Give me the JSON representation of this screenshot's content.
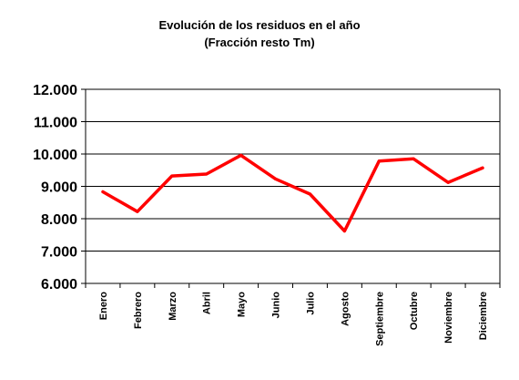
{
  "chart_data": {
    "type": "line",
    "title": "Evolución de los residuos en el año",
    "subtitle": "(Fracción resto Tm)",
    "xlabel": "",
    "ylabel": "",
    "categories": [
      "Enero",
      "Febrero",
      "Marzo",
      "Abril",
      "Mayo",
      "Junio",
      "Julio",
      "Agosto",
      "Septiembre",
      "Octubre",
      "Noviembre",
      "Diciembre"
    ],
    "series": [
      {
        "values": [
          8830,
          8220,
          9320,
          9380,
          9960,
          9230,
          8760,
          7620,
          9780,
          9850,
          9120,
          9570
        ]
      }
    ],
    "ylim": [
      6000,
      12000
    ],
    "yticks": [
      12000,
      11000,
      10000,
      9000,
      8000,
      7000,
      6000
    ],
    "ytick_labels": [
      "12.000",
      "11.000",
      "10.000",
      "9.000",
      "8.000",
      "7.000",
      "6.000"
    ],
    "grid": true,
    "legend": "none",
    "colors": {
      "line": "#ff0000",
      "grid": "#000000",
      "background": "#ffffff"
    }
  }
}
